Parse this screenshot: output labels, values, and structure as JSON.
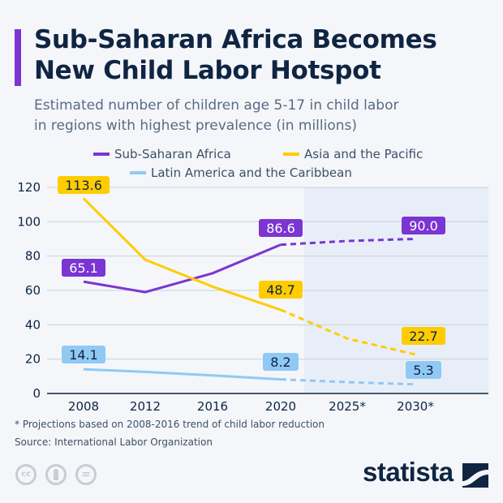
{
  "header": {
    "title_line1": "Sub-Saharan Africa Becomes",
    "title_line2": "New Child Labor Hotspot",
    "subtitle_line1": "Estimated number of children age 5-17 in child labor",
    "subtitle_line2": "in regions with highest prevalence (in millions)"
  },
  "chart_data": {
    "type": "line",
    "x": [
      "2008",
      "2012",
      "2016",
      "2020",
      "2025*",
      "2030*"
    ],
    "projected_from_index": 3,
    "projection_shaded": true,
    "ylim": [
      0,
      120
    ],
    "yticks": [
      "0",
      "20",
      "40",
      "60",
      "80",
      "100",
      "120"
    ],
    "grid": true,
    "legend_placement": "top",
    "series": [
      {
        "name": "Sub-Saharan Africa",
        "color": "#7b35d2",
        "values": [
          65.1,
          59.0,
          70.0,
          86.6,
          88.8,
          90.0
        ]
      },
      {
        "name": "Asia and the Pacific",
        "color": "#ffcc00",
        "values": [
          113.6,
          77.9,
          62.2,
          48.7,
          32.0,
          22.7
        ]
      },
      {
        "name": "Latin America and the Caribbean",
        "color": "#90c9f4",
        "values": [
          14.1,
          12.6,
          10.5,
          8.2,
          6.6,
          5.3
        ]
      }
    ],
    "data_labels": [
      {
        "series": 1,
        "index": 0,
        "text": "113.6"
      },
      {
        "series": 0,
        "index": 0,
        "text": "65.1"
      },
      {
        "series": 2,
        "index": 0,
        "text": "14.1"
      },
      {
        "series": 0,
        "index": 3,
        "text": "86.6"
      },
      {
        "series": 1,
        "index": 3,
        "text": "48.7"
      },
      {
        "series": 2,
        "index": 3,
        "text": "8.2"
      },
      {
        "series": 0,
        "index": 5,
        "text": "90.0"
      },
      {
        "series": 1,
        "index": 5,
        "text": "22.7"
      },
      {
        "series": 2,
        "index": 5,
        "text": "5.3"
      }
    ]
  },
  "footer": {
    "note": "* Projections based on 2008-2016 trend of child labor reduction",
    "source": "Source: International Labor Organization",
    "license_icons": [
      "cc-icon",
      "by-icon",
      "nd-icon"
    ],
    "cc_text": "cc",
    "nd_text": "="
  },
  "brand": {
    "logo": "statista"
  }
}
